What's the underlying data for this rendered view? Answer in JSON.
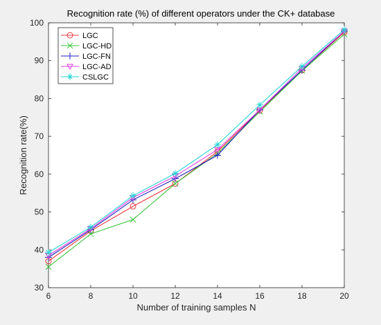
{
  "chart_data": {
    "type": "line",
    "title": "Recognition rate (%) of different operators under the CK+ database",
    "xlabel": "Number of training samples N",
    "ylabel": "Recognition rate(%)",
    "xlim": [
      6,
      20
    ],
    "ylim": [
      30,
      100
    ],
    "xticks": [
      6,
      8,
      10,
      12,
      14,
      16,
      18,
      20
    ],
    "yticks": [
      30,
      40,
      50,
      60,
      70,
      80,
      90,
      100
    ],
    "grid": false,
    "legend_position": "top-left",
    "x": [
      6,
      8,
      10,
      12,
      14,
      16,
      18,
      20
    ],
    "series": [
      {
        "name": "LGC",
        "color": "#e8383d",
        "marker": "circle",
        "values": [
          37.0,
          45.0,
          51.5,
          57.5,
          66.0,
          76.8,
          87.5,
          97.5
        ]
      },
      {
        "name": "LGC-HD",
        "color": "#3cc43c",
        "marker": "x",
        "values": [
          35.5,
          44.2,
          48.0,
          57.5,
          65.5,
          76.5,
          87.3,
          97.0
        ]
      },
      {
        "name": "LGC-FN",
        "color": "#1f1fbf",
        "marker": "plus",
        "values": [
          38.0,
          45.3,
          53.2,
          58.8,
          65.0,
          77.0,
          87.5,
          97.8
        ]
      },
      {
        "name": "LGC-AD",
        "color": "#e040e0",
        "marker": "triangle-down",
        "values": [
          38.5,
          45.6,
          53.8,
          59.5,
          66.5,
          77.0,
          88.0,
          97.8
        ]
      },
      {
        "name": "CSLGC",
        "color": "#22d3d3",
        "marker": "star",
        "values": [
          39.3,
          46.0,
          54.3,
          60.2,
          67.8,
          78.3,
          88.5,
          98.2
        ]
      }
    ]
  }
}
